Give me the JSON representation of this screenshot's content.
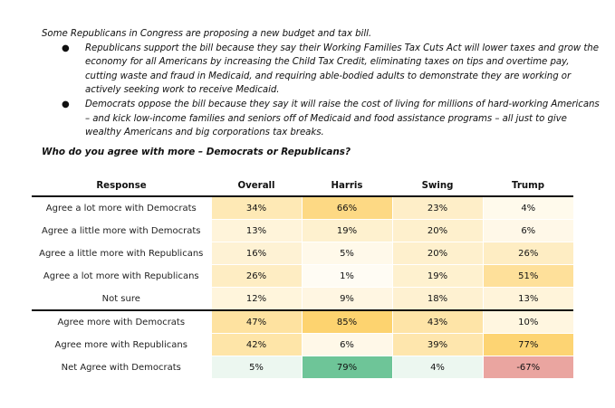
{
  "intro": {
    "lead": "Some Republicans in Congress are proposing a new budget and tax bill.",
    "bullet_glyph": "●",
    "bullets": [
      "Republicans support the bill because they say their Working Families Tax Cuts Act will lower taxes and grow the economy for all Americans by increasing the Child Tax Credit, eliminating taxes on tips and overtime pay, cutting waste and fraud in Medicaid, and requiring able-bodied adults to demonstrate they are working or actively seeking work to receive Medicaid.",
      "Democrats oppose the bill because they say it will raise the cost of living for millions of hard-working Americans – and kick low-income families and seniors off of Medicaid and food assistance programs – all just to give wealthy Americans and big corporations tax breaks."
    ]
  },
  "question": "Who do you agree with more – Democrats or Republicans?",
  "colors": {
    "heat_high": "#fdd36f",
    "heat_low": "#ffffff",
    "net_positive": "#6cc497",
    "net_negative": "#e8948f"
  },
  "table": {
    "headers": [
      "Response",
      "Overall",
      "Harris",
      "Swing",
      "Trump"
    ],
    "rows": [
      {
        "label": "Agree a lot more with Democrats",
        "values": [
          "34%",
          "66%",
          "23%",
          "4%"
        ],
        "group": "detail"
      },
      {
        "label": "Agree a little more with Democrats",
        "values": [
          "13%",
          "19%",
          "20%",
          "6%"
        ],
        "group": "detail"
      },
      {
        "label": "Agree a little more with Republicans",
        "values": [
          "16%",
          "5%",
          "20%",
          "26%"
        ],
        "group": "detail"
      },
      {
        "label": "Agree a lot more with Republicans",
        "values": [
          "26%",
          "1%",
          "19%",
          "51%"
        ],
        "group": "detail"
      },
      {
        "label": "Not sure",
        "values": [
          "12%",
          "9%",
          "18%",
          "13%"
        ],
        "group": "detail"
      },
      {
        "label": "Agree more with Democrats",
        "values": [
          "47%",
          "85%",
          "43%",
          "10%"
        ],
        "group": "summary"
      },
      {
        "label": "Agree more with Republicans",
        "values": [
          "42%",
          "6%",
          "39%",
          "77%"
        ],
        "group": "summary"
      },
      {
        "label": "Net Agree with Democrats",
        "values": [
          "5%",
          "79%",
          "4%",
          "-67%"
        ],
        "group": "net"
      }
    ]
  }
}
